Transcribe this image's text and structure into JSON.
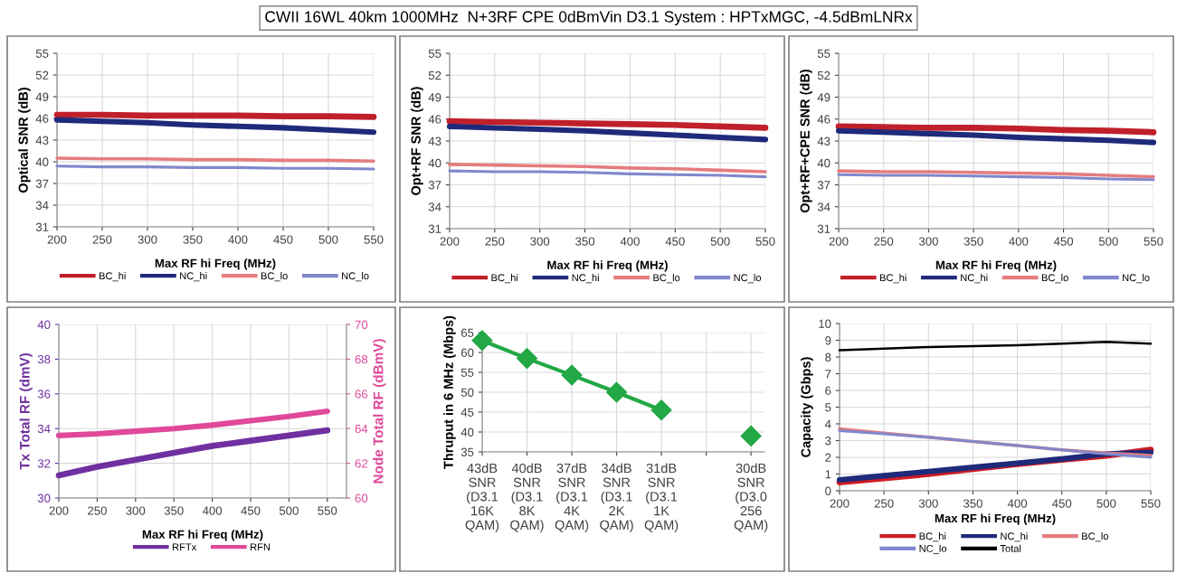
{
  "chart_data": [
    {
      "type": "line",
      "title": "CWII 16WL 40km 1000MHz  N+3RF CPE 0dBmVin D3.1 System : HPTxMGC, -4.5dBmLNRx",
      "xlabel": "Max RF hi Freq (MHz)",
      "ylabel": "Optical SNR (dB)",
      "x": [
        200,
        250,
        300,
        350,
        400,
        450,
        500,
        550
      ],
      "xlim": [
        200,
        550
      ],
      "xticks": [
        200,
        250,
        300,
        350,
        400,
        450,
        500,
        550
      ],
      "ylim": [
        31,
        55
      ],
      "yticks": [
        31,
        34,
        37,
        40,
        43,
        46,
        49,
        52,
        55
      ],
      "grid": true,
      "legend": "bottom",
      "marker": "none",
      "series": [
        {
          "name": "BC_hi",
          "color": "#c0202a",
          "values": [
            46.5,
            46.5,
            46.4,
            46.4,
            46.4,
            46.3,
            46.3,
            46.2
          ]
        },
        {
          "name": "NC_hi",
          "color": "#1f2a7a",
          "values": [
            45.8,
            45.6,
            45.4,
            45.1,
            44.9,
            44.7,
            44.4,
            44.1
          ]
        },
        {
          "name": "BC_lo",
          "color": "#e57c7e",
          "values": [
            40.5,
            40.4,
            40.4,
            40.3,
            40.3,
            40.2,
            40.2,
            40.1
          ]
        },
        {
          "name": "NC_lo",
          "color": "#8088cc",
          "values": [
            39.4,
            39.3,
            39.3,
            39.2,
            39.2,
            39.1,
            39.1,
            39.0
          ]
        }
      ]
    },
    {
      "type": "line",
      "xlabel": "Max RF hi Freq (MHz)",
      "ylabel": "Opt+RF SNR (dB)",
      "x": [
        200,
        250,
        300,
        350,
        400,
        450,
        500,
        550
      ],
      "xlim": [
        200,
        550
      ],
      "xticks": [
        200,
        250,
        300,
        350,
        400,
        450,
        500,
        550
      ],
      "ylim": [
        31,
        55
      ],
      "yticks": [
        31,
        34,
        37,
        40,
        43,
        46,
        49,
        52,
        55
      ],
      "grid": true,
      "legend": "bottom",
      "marker": "none",
      "series": [
        {
          "name": "BC_hi",
          "color": "#c0202a",
          "values": [
            45.7,
            45.6,
            45.5,
            45.4,
            45.3,
            45.2,
            45.0,
            44.8
          ]
        },
        {
          "name": "NC_hi",
          "color": "#1f2a7a",
          "values": [
            45.0,
            44.8,
            44.6,
            44.4,
            44.1,
            43.8,
            43.5,
            43.2
          ]
        },
        {
          "name": "BC_lo",
          "color": "#e57c7e",
          "values": [
            39.8,
            39.7,
            39.6,
            39.5,
            39.3,
            39.2,
            39.0,
            38.8
          ]
        },
        {
          "name": "NC_lo",
          "color": "#8088cc",
          "values": [
            38.9,
            38.8,
            38.8,
            38.7,
            38.5,
            38.4,
            38.3,
            38.1
          ]
        }
      ]
    },
    {
      "type": "line",
      "xlabel": "Max RF hi Freq (MHz)",
      "ylabel": "Opt+RF+CPE SNR (dB)",
      "x": [
        200,
        250,
        300,
        350,
        400,
        450,
        500,
        550
      ],
      "xlim": [
        200,
        550
      ],
      "xticks": [
        200,
        250,
        300,
        350,
        400,
        450,
        500,
        550
      ],
      "ylim": [
        31,
        55
      ],
      "yticks": [
        31,
        34,
        37,
        40,
        43,
        46,
        49,
        52,
        55
      ],
      "grid": true,
      "legend": "bottom",
      "marker": "none",
      "series": [
        {
          "name": "BC_hi",
          "color": "#c0202a",
          "values": [
            45.0,
            44.9,
            44.8,
            44.8,
            44.7,
            44.5,
            44.4,
            44.2
          ]
        },
        {
          "name": "NC_hi",
          "color": "#1f2a7a",
          "values": [
            44.4,
            44.2,
            44.0,
            43.8,
            43.5,
            43.3,
            43.1,
            42.8
          ]
        },
        {
          "name": "BC_lo",
          "color": "#e57c7e",
          "values": [
            38.9,
            38.8,
            38.8,
            38.7,
            38.6,
            38.5,
            38.3,
            38.1
          ]
        },
        {
          "name": "NC_lo",
          "color": "#8088cc",
          "values": [
            38.4,
            38.3,
            38.3,
            38.2,
            38.1,
            38.0,
            37.8,
            37.7
          ]
        }
      ]
    },
    {
      "type": "line",
      "xlabel": "Max RF hi Freq (MHz)",
      "ylabel": "Tx Total RF (dmV)",
      "y2label": "Node Total RF (dBmV)",
      "x": [
        200,
        250,
        300,
        350,
        400,
        450,
        500,
        550
      ],
      "xlim": [
        200,
        575
      ],
      "xticks": [
        200,
        250,
        300,
        350,
        400,
        450,
        500,
        550
      ],
      "ylim": [
        30,
        40
      ],
      "yticks": [
        30,
        32,
        34,
        36,
        38,
        40
      ],
      "y2lim": [
        60,
        70
      ],
      "y2ticks": [
        60,
        62,
        64,
        66,
        68,
        70
      ],
      "grid": true,
      "legend": "bottom",
      "marker": "none",
      "series": [
        {
          "name": "RFTx",
          "color": "#7030a0",
          "values": [
            31.3,
            31.8,
            32.2,
            32.6,
            33.0,
            33.3,
            33.6,
            33.9
          ]
        },
        {
          "name": "RFN",
          "color": "#e0489a",
          "axis": "y2",
          "values": [
            63.6,
            63.7,
            63.85,
            64.0,
            64.2,
            64.45,
            64.7,
            65.0
          ]
        }
      ]
    },
    {
      "type": "line",
      "ylabel": "Thruput in 6 MHz (Mbps)",
      "categories": [
        "43dB\nSNR\n(D3.1\n16K\nQAM)",
        "40dB\nSNR\n(D3.1\n8K\nQAM)",
        "37dB\nSNR\n(D3.1\n4K\nQAM)",
        "34dB\nSNR\n(D3.1\n2K\nQAM)",
        "31dB\nSNR\n(D3.1\n1K\nQAM)",
        null,
        "30dB\nSNR\n(D3.0\n256\nQAM)"
      ],
      "ylim": [
        35,
        65
      ],
      "yticks": [
        35,
        40,
        45,
        50,
        55,
        60,
        65
      ],
      "grid": true,
      "marker": "diamond",
      "series": [
        {
          "color": "#22a844",
          "values": [
            63,
            58.5,
            54.3,
            50,
            45.5,
            null,
            39
          ]
        }
      ]
    },
    {
      "type": "line",
      "xlabel": "Max RF hi Freq (MHz)",
      "ylabel": "Capacity (Gbps)",
      "x": [
        200,
        250,
        300,
        350,
        400,
        450,
        500,
        550
      ],
      "xlim": [
        200,
        550
      ],
      "xticks": [
        200,
        250,
        300,
        350,
        400,
        450,
        500,
        550
      ],
      "ylim": [
        0,
        10
      ],
      "yticks": [
        0,
        1,
        2,
        3,
        4,
        5,
        6,
        7,
        8,
        9,
        10
      ],
      "grid": true,
      "legend": "bottom",
      "marker": "none",
      "series": [
        {
          "name": "BC_hi",
          "color": "#d01c24",
          "values": [
            0.5,
            0.75,
            1.0,
            1.3,
            1.6,
            1.85,
            2.1,
            2.45
          ]
        },
        {
          "name": "NC_hi",
          "color": "#1f2a7a",
          "values": [
            0.65,
            0.9,
            1.15,
            1.4,
            1.65,
            1.9,
            2.2,
            2.3
          ]
        },
        {
          "name": "BC_lo",
          "color": "#e57c7e",
          "values": [
            3.7,
            3.45,
            3.2,
            2.95,
            2.7,
            2.45,
            2.25,
            2.1
          ]
        },
        {
          "name": "NC_lo",
          "color": "#8088cc",
          "values": [
            3.6,
            3.4,
            3.2,
            2.95,
            2.7,
            2.45,
            2.2,
            2.0
          ]
        },
        {
          "name": "Total",
          "color": "#000000",
          "values": [
            8.4,
            8.5,
            8.6,
            8.65,
            8.7,
            8.8,
            8.9,
            8.8
          ]
        }
      ]
    }
  ]
}
